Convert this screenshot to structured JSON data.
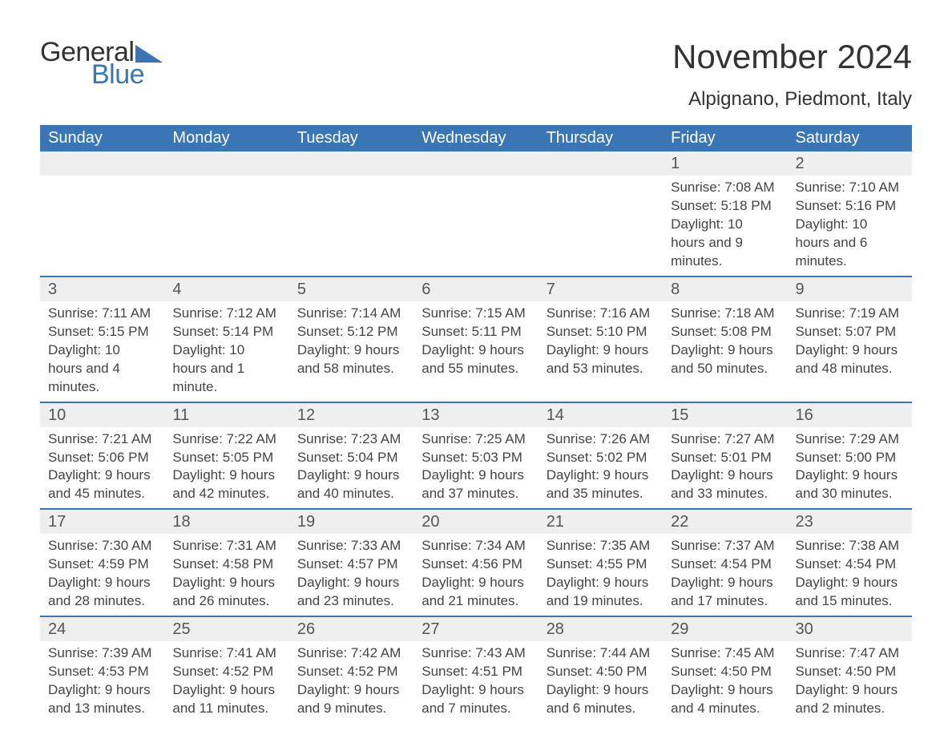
{
  "colors": {
    "brand_blue": "#3a75b5",
    "header_row_bg": "#3a75b5",
    "header_row_text": "#ffffff",
    "daynum_bg": "#efefef",
    "daynum_text": "#555555",
    "body_text": "#444444",
    "title_text": "#333333",
    "page_bg": "#ffffff",
    "week_divider": "#3a75b5"
  },
  "typography": {
    "font_family": "Arial, Helvetica, sans-serif",
    "month_title_pt": 42,
    "location_pt": 24,
    "weekday_header_pt": 20,
    "daynum_pt": 20,
    "cell_text_pt": 17,
    "logo_pt": 34
  },
  "logo": {
    "word1": "General",
    "word2": "Blue"
  },
  "title": "November 2024",
  "location": "Alpignano, Piedmont, Italy",
  "labels": {
    "sunrise": "Sunrise",
    "sunset": "Sunset",
    "daylight": "Daylight"
  },
  "weekdays": [
    "Sunday",
    "Monday",
    "Tuesday",
    "Wednesday",
    "Thursday",
    "Friday",
    "Saturday"
  ],
  "weeks": [
    [
      null,
      null,
      null,
      null,
      null,
      {
        "day": 1,
        "sunrise": "7:08 AM",
        "sunset": "5:18 PM",
        "daylight": "10 hours and 9 minutes."
      },
      {
        "day": 2,
        "sunrise": "7:10 AM",
        "sunset": "5:16 PM",
        "daylight": "10 hours and 6 minutes."
      }
    ],
    [
      {
        "day": 3,
        "sunrise": "7:11 AM",
        "sunset": "5:15 PM",
        "daylight": "10 hours and 4 minutes."
      },
      {
        "day": 4,
        "sunrise": "7:12 AM",
        "sunset": "5:14 PM",
        "daylight": "10 hours and 1 minute."
      },
      {
        "day": 5,
        "sunrise": "7:14 AM",
        "sunset": "5:12 PM",
        "daylight": "9 hours and 58 minutes."
      },
      {
        "day": 6,
        "sunrise": "7:15 AM",
        "sunset": "5:11 PM",
        "daylight": "9 hours and 55 minutes."
      },
      {
        "day": 7,
        "sunrise": "7:16 AM",
        "sunset": "5:10 PM",
        "daylight": "9 hours and 53 minutes."
      },
      {
        "day": 8,
        "sunrise": "7:18 AM",
        "sunset": "5:08 PM",
        "daylight": "9 hours and 50 minutes."
      },
      {
        "day": 9,
        "sunrise": "7:19 AM",
        "sunset": "5:07 PM",
        "daylight": "9 hours and 48 minutes."
      }
    ],
    [
      {
        "day": 10,
        "sunrise": "7:21 AM",
        "sunset": "5:06 PM",
        "daylight": "9 hours and 45 minutes."
      },
      {
        "day": 11,
        "sunrise": "7:22 AM",
        "sunset": "5:05 PM",
        "daylight": "9 hours and 42 minutes."
      },
      {
        "day": 12,
        "sunrise": "7:23 AM",
        "sunset": "5:04 PM",
        "daylight": "9 hours and 40 minutes."
      },
      {
        "day": 13,
        "sunrise": "7:25 AM",
        "sunset": "5:03 PM",
        "daylight": "9 hours and 37 minutes."
      },
      {
        "day": 14,
        "sunrise": "7:26 AM",
        "sunset": "5:02 PM",
        "daylight": "9 hours and 35 minutes."
      },
      {
        "day": 15,
        "sunrise": "7:27 AM",
        "sunset": "5:01 PM",
        "daylight": "9 hours and 33 minutes."
      },
      {
        "day": 16,
        "sunrise": "7:29 AM",
        "sunset": "5:00 PM",
        "daylight": "9 hours and 30 minutes."
      }
    ],
    [
      {
        "day": 17,
        "sunrise": "7:30 AM",
        "sunset": "4:59 PM",
        "daylight": "9 hours and 28 minutes."
      },
      {
        "day": 18,
        "sunrise": "7:31 AM",
        "sunset": "4:58 PM",
        "daylight": "9 hours and 26 minutes."
      },
      {
        "day": 19,
        "sunrise": "7:33 AM",
        "sunset": "4:57 PM",
        "daylight": "9 hours and 23 minutes."
      },
      {
        "day": 20,
        "sunrise": "7:34 AM",
        "sunset": "4:56 PM",
        "daylight": "9 hours and 21 minutes."
      },
      {
        "day": 21,
        "sunrise": "7:35 AM",
        "sunset": "4:55 PM",
        "daylight": "9 hours and 19 minutes."
      },
      {
        "day": 22,
        "sunrise": "7:37 AM",
        "sunset": "4:54 PM",
        "daylight": "9 hours and 17 minutes."
      },
      {
        "day": 23,
        "sunrise": "7:38 AM",
        "sunset": "4:54 PM",
        "daylight": "9 hours and 15 minutes."
      }
    ],
    [
      {
        "day": 24,
        "sunrise": "7:39 AM",
        "sunset": "4:53 PM",
        "daylight": "9 hours and 13 minutes."
      },
      {
        "day": 25,
        "sunrise": "7:41 AM",
        "sunset": "4:52 PM",
        "daylight": "9 hours and 11 minutes."
      },
      {
        "day": 26,
        "sunrise": "7:42 AM",
        "sunset": "4:52 PM",
        "daylight": "9 hours and 9 minutes."
      },
      {
        "day": 27,
        "sunrise": "7:43 AM",
        "sunset": "4:51 PM",
        "daylight": "9 hours and 7 minutes."
      },
      {
        "day": 28,
        "sunrise": "7:44 AM",
        "sunset": "4:50 PM",
        "daylight": "9 hours and 6 minutes."
      },
      {
        "day": 29,
        "sunrise": "7:45 AM",
        "sunset": "4:50 PM",
        "daylight": "9 hours and 4 minutes."
      },
      {
        "day": 30,
        "sunrise": "7:47 AM",
        "sunset": "4:50 PM",
        "daylight": "9 hours and 2 minutes."
      }
    ]
  ]
}
